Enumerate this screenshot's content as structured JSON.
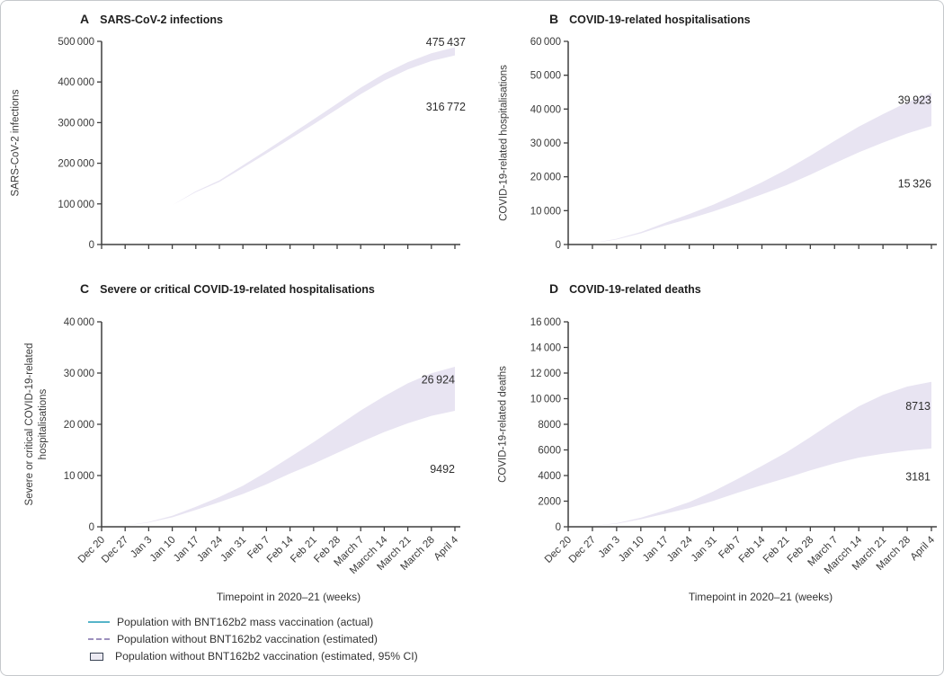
{
  "chart_data": {
    "type": "line",
    "x_axis_title": "Timepoint in 2020–21 (weeks)",
    "x_categories": [
      "Dec 20",
      "Dec 27",
      "Jan 3",
      "Jan 10",
      "Jan 17",
      "Jan 24",
      "Jan 31",
      "Feb 7",
      "Feb 14",
      "Feb 21",
      "Feb 28",
      "March 7",
      "Marcch 14",
      "March 21",
      "March 28",
      "April 4"
    ],
    "colors": {
      "actual_line": "#56B4C9",
      "estimated_line": "#9D91BE",
      "ci_fill": "#E8E4F2",
      "axis": "#3F3F3F",
      "text": "#3A3A3A",
      "ci_box_border": "#3A4354"
    },
    "panels": [
      {
        "letter": "A",
        "title": "SARS-CoV-2 infections",
        "ylabel": "SARS-CoV-2 infections",
        "ylim": [
          0,
          500000
        ],
        "yticks": [
          0,
          100000,
          200000,
          300000,
          400000,
          500000
        ],
        "series": [
          {
            "name": "Population with BNT162b2 mass vaccination (actual)",
            "style": "solid",
            "end_label": 316772,
            "values": [
              0,
              20000,
              55000,
              97000,
              128000,
              150000,
              178000,
              205000,
              230000,
              252000,
              272000,
              288000,
              300000,
              308000,
              313000,
              316772
            ]
          },
          {
            "name": "Population without BNT162b2 vaccination (estimated)",
            "style": "dashed",
            "end_label": 475437,
            "values": [
              0,
              20000,
              55000,
              97000,
              130000,
              156000,
              192000,
              228000,
              265000,
              302000,
              340000,
              378000,
              412000,
              440000,
              461000,
              475437
            ],
            "ci_upper": [
              0,
              20000,
              55000,
              97000,
              131000,
              158000,
              195000,
              232000,
              270000,
              308000,
              347000,
              386000,
              420500,
              449000,
              470500,
              485437
            ],
            "ci_lower": [
              0,
              20000,
              55000,
              97000,
              129000,
              154000,
              189000,
              224000,
              260000,
              296000,
              333000,
              370000,
              403500,
              431000,
              451500,
              465437
            ]
          }
        ]
      },
      {
        "letter": "B",
        "title": "COVID-19-related hospitalisations",
        "ylabel": "COVID-19-related hospitalisations",
        "ylim": [
          0,
          60000
        ],
        "yticks": [
          0,
          10000,
          20000,
          30000,
          40000,
          50000,
          60000
        ],
        "series": [
          {
            "name": "Population with BNT162b2 mass vaccination (actual)",
            "style": "solid",
            "end_label": 15326,
            "values": [
              0,
              400,
              1500,
              3200,
              5200,
              6900,
              8400,
              9800,
              11000,
              12000,
              12900,
              13600,
              14200,
              14700,
              15100,
              15326
            ]
          },
          {
            "name": "Population without BNT162b2 vaccination (estimated)",
            "style": "dashed",
            "end_label": 39923,
            "values": [
              0,
              400,
              1600,
              3500,
              6000,
              8300,
              10800,
              13600,
              16600,
              19800,
              23400,
              27300,
              31000,
              34300,
              37400,
              39923
            ],
            "ci_upper": [
              0,
              400,
              1700,
              3700,
              6400,
              9000,
              11800,
              15000,
              18400,
              22100,
              26200,
              30600,
              34800,
              38500,
              42000,
              44823
            ],
            "ci_lower": [
              0,
              400,
              1500,
              3300,
              5600,
              7600,
              9800,
              12200,
              14800,
              17500,
              20600,
              24000,
              27200,
              30100,
              32800,
              35023
            ]
          }
        ]
      },
      {
        "letter": "C",
        "title": "Severe or critical COVID-19-related hospitalisations",
        "ylabel": "Severe or critical COVID-19-related\nhospitalisations",
        "ylim": [
          0,
          40000
        ],
        "yticks": [
          0,
          10000,
          20000,
          30000,
          40000
        ],
        "series": [
          {
            "name": "Population with BNT162b2 mass vaccination (actual)",
            "style": "solid",
            "end_label": 9492,
            "values": [
              0,
              200,
              800,
              1800,
              3000,
              4100,
              5100,
              6100,
              7000,
              7700,
              8300,
              8800,
              9100,
              9300,
              9420,
              9492
            ]
          },
          {
            "name": "Population without BNT162b2 vaccination (estimated)",
            "style": "dashed",
            "end_label": 26924,
            "values": [
              0,
              200,
              900,
              2000,
              3600,
              5300,
              7200,
              9500,
              12000,
              14400,
              17000,
              19600,
              22000,
              24100,
              25800,
              26924
            ],
            "ci_upper": [
              0,
              200,
              950,
              2150,
              3900,
              5800,
              8000,
              10700,
              13600,
              16500,
              19600,
              22700,
              25500,
              28000,
              29950,
              31224
            ],
            "ci_lower": [
              0,
              200,
              850,
              1850,
              3300,
              4800,
              6400,
              8300,
              10400,
              12300,
              14400,
              16500,
              18500,
              20200,
              21650,
              22624
            ]
          }
        ]
      },
      {
        "letter": "D",
        "title": "COVID-19-related deaths",
        "ylabel": "COVID-19-related deaths",
        "ylim": [
          0,
          16000
        ],
        "yticks": [
          0,
          2000,
          4000,
          6000,
          8000,
          10000,
          12000,
          14000,
          16000
        ],
        "series": [
          {
            "name": "Population with BNT162b2 mass vaccination (actual)",
            "style": "solid",
            "end_label": 3181,
            "values": [
              0,
              60,
              250,
              600,
              1000,
              1400,
              1750,
              2100,
              2400,
              2650,
              2850,
              3000,
              3080,
              3130,
              3160,
              3181
            ]
          },
          {
            "name": "Population without BNT162b2 vaccination (estimated)",
            "style": "dashed",
            "end_label": 8713,
            "values": [
              0,
              60,
              260,
              650,
              1150,
              1700,
              2400,
              3200,
              4000,
              4800,
              5700,
              6600,
              7400,
              8000,
              8450,
              8713
            ],
            "ci_upper": [
              0,
              60,
              280,
              710,
              1280,
              1930,
              2770,
              3740,
              4750,
              5800,
              7000,
              8250,
              9400,
              10300,
              10950,
              11313
            ],
            "ci_lower": [
              0,
              60,
              240,
              590,
              1020,
              1470,
              2030,
              2660,
              3250,
              3800,
              4400,
              4950,
              5400,
              5700,
              5950,
              6113
            ]
          }
        ]
      }
    ],
    "legend": [
      {
        "swatch": "solid-line",
        "color": "#56B4C9",
        "label": "Population with BNT162b2 mass vaccination (actual)"
      },
      {
        "swatch": "dashed-line",
        "color": "#9D91BE",
        "label": "Population without BNT162b2 vaccination (estimated)"
      },
      {
        "swatch": "ci-box",
        "fill": "#ECEAF3",
        "border": "#3A4354",
        "label": "Population without BNT162b2 vaccination (estimated, 95% CI)"
      }
    ]
  }
}
